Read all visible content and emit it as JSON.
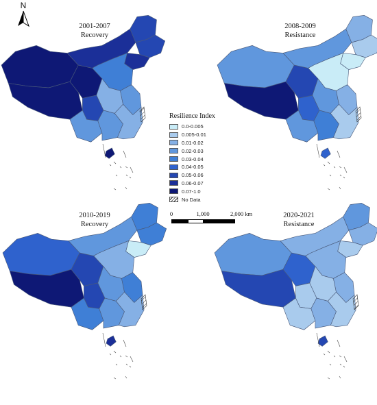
{
  "north_arrow": {
    "letter": "N",
    "icon": "north-arrow-icon"
  },
  "panels": [
    {
      "period": "2001-2007",
      "type": "Recovery"
    },
    {
      "period": "2008-2009",
      "type": "Resistance"
    },
    {
      "period": "2010-2019",
      "type": "Recovery"
    },
    {
      "period": "2020-2021",
      "type": "Resistance"
    }
  ],
  "legend": {
    "title": "Resilience Index",
    "items": [
      {
        "label": "0.0-0.005",
        "color": "#c9ecf7"
      },
      {
        "label": "0.005-0.01",
        "color": "#a9cbed"
      },
      {
        "label": "0.01-0.02",
        "color": "#85b0e5"
      },
      {
        "label": "0.02-0.03",
        "color": "#6097dd"
      },
      {
        "label": "0.03-0.04",
        "color": "#3f7fd6"
      },
      {
        "label": "0.04-0.05",
        "color": "#2f62cd"
      },
      {
        "label": "0.05-0.06",
        "color": "#2447b2"
      },
      {
        "label": "0.06-0.07",
        "color": "#1b2f98"
      },
      {
        "label": "0.07-1.0",
        "color": "#0e1875"
      }
    ],
    "no_data": {
      "label": "No Data"
    }
  },
  "scale": {
    "ticks": [
      "0",
      "1,000",
      "2,000 km"
    ]
  },
  "maps": [
    {
      "classes": {
        "west": 8,
        "tibet": 8,
        "qinghai": 8,
        "innermongolia": 7,
        "northeast_far": 6,
        "northeast_mid": 6,
        "northeast_south": 7,
        "north_china": 4,
        "central": 2,
        "central_east": 3,
        "southwest": 3,
        "south": 3,
        "coast": 2,
        "chongqing": 6,
        "hainan": 8
      }
    },
    {
      "classes": {
        "west": 3,
        "tibet": 8,
        "qinghai": 6,
        "innermongolia": 3,
        "northeast_far": 2,
        "northeast_mid": 1,
        "northeast_south": 0,
        "north_china": 0,
        "central": 3,
        "central_east": 2,
        "southwest": 3,
        "south": 4,
        "coast": 1,
        "chongqing": 5,
        "hainan": 5
      }
    },
    {
      "classes": {
        "west": 5,
        "tibet": 8,
        "qinghai": 6,
        "innermongolia": 3,
        "northeast_far": 4,
        "northeast_mid": 4,
        "northeast_south": 0,
        "north_china": 2,
        "central": 3,
        "central_east": 4,
        "southwest": 4,
        "south": 3,
        "coast": 2,
        "chongqing": 6,
        "hainan": 7
      }
    },
    {
      "classes": {
        "west": 3,
        "tibet": 6,
        "qinghai": 5,
        "innermongolia": 2,
        "northeast_far": 3,
        "northeast_mid": 2,
        "northeast_south": 1,
        "north_china": 2,
        "central": 1,
        "central_east": 2,
        "southwest": 1,
        "south": 2,
        "coast": 1,
        "chongqing": 1,
        "hainan": 6
      }
    }
  ]
}
